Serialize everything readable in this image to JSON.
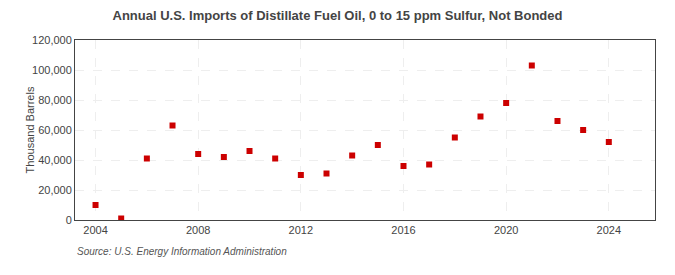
{
  "chart_data": {
    "type": "scatter",
    "title": "Annual U.S. Imports of Distillate Fuel Oil, 0 to 15 ppm Sulfur, Not Bonded",
    "ylabel": "Thousand Barrels",
    "source": "Source: U.S. Energy Information Administration",
    "x": [
      2004,
      2005,
      2006,
      2007,
      2008,
      2009,
      2010,
      2011,
      2012,
      2013,
      2014,
      2015,
      2016,
      2017,
      2018,
      2019,
      2020,
      2021,
      2022,
      2023,
      2024
    ],
    "values": [
      10000,
      1000,
      41000,
      63000,
      44000,
      42000,
      46000,
      41000,
      30000,
      31000,
      43000,
      50000,
      36000,
      37000,
      55000,
      69000,
      78000,
      103000,
      66000,
      60000,
      52000
    ],
    "color": "#cc0000",
    "marker": "square",
    "xlim": [
      2003.2,
      2025.8
    ],
    "xticks": [
      2004,
      2008,
      2012,
      2016,
      2020,
      2024
    ],
    "ylim": [
      0,
      120000
    ],
    "yticks": [
      0,
      {
        "value": 20000,
        "label": "20,000"
      },
      {
        "value": 40000,
        "label": "40,000"
      },
      {
        "value": 60000,
        "label": "60,000"
      },
      {
        "value": 80000,
        "label": "80,000"
      },
      {
        "value": 100000,
        "label": "100,000"
      },
      {
        "value": 120000,
        "label": "120,000"
      }
    ],
    "grid": true
  }
}
